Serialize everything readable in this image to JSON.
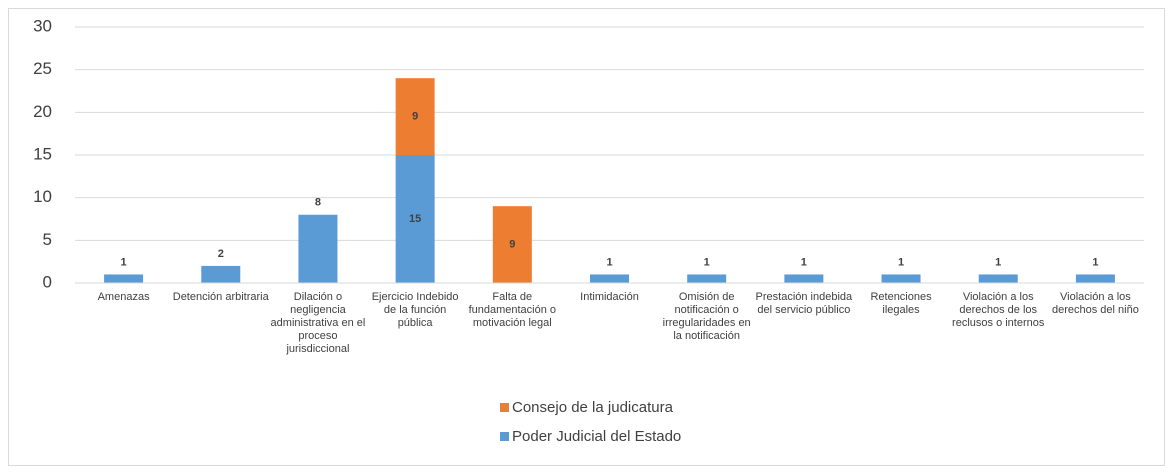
{
  "chart_data": {
    "type": "bar",
    "stacked": true,
    "categories": [
      "Amenazas",
      "Detención arbitraria",
      "Dilación o negligencia administrativa en el proceso jurisdiccional",
      "Ejercicio Indebido de la función pública",
      "Falta de fundamentación o motivación legal",
      "Intimidación",
      "Omisión de notificación o irregularidades en la notificación",
      "Prestación indebida del servicio público",
      "Retenciones ilegales",
      "Violación a los derechos  de los reclusos o internos",
      "Violación a los derechos del niño"
    ],
    "series": [
      {
        "name": "Poder Judicial del Estado",
        "color": "#5b9bd5",
        "values": [
          1,
          2,
          8,
          15,
          null,
          1,
          1,
          1,
          1,
          1,
          1
        ]
      },
      {
        "name": "Consejo de la judicatura",
        "color": "#ed7d31",
        "values": [
          null,
          null,
          null,
          9,
          9,
          null,
          null,
          null,
          null,
          null,
          null
        ]
      }
    ],
    "ylim": [
      0,
      30
    ],
    "yticks": [
      0,
      5,
      10,
      15,
      20,
      25,
      30
    ],
    "grid": true,
    "legend": "bottom"
  }
}
